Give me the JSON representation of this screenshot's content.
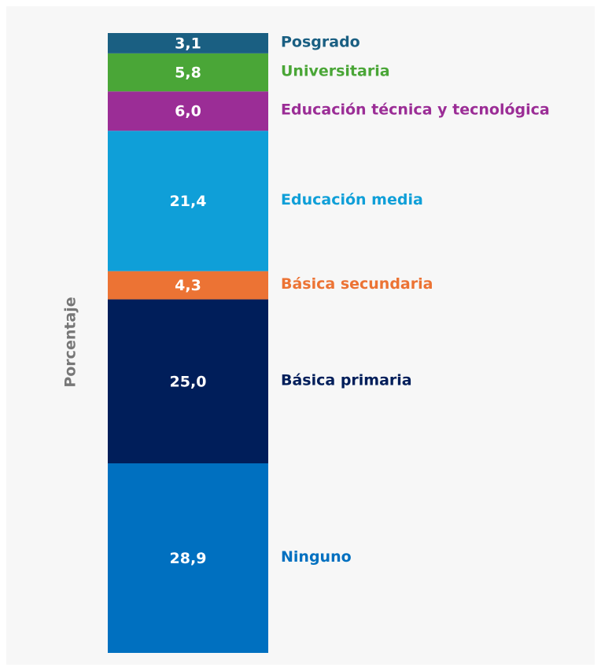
{
  "chart_data": {
    "type": "stacked_bar",
    "ylabel": "Porcentaje",
    "ylim": [
      0,
      94.5
    ],
    "series": [
      {
        "name": "Ninguno",
        "color": "#0070c0",
        "values": [
          28.9
        ],
        "value_labels": [
          "28,9"
        ]
      },
      {
        "name": "Básica primaria",
        "color": "#001e5a",
        "values": [
          25.0
        ],
        "value_labels": [
          "25,0"
        ]
      },
      {
        "name": "Básica secundaria",
        "color": "#ec7334",
        "values": [
          4.3
        ],
        "value_labels": [
          "4,3"
        ]
      },
      {
        "name": "Educación media",
        "color": "#0f9fd8",
        "values": [
          21.4
        ],
        "value_labels": [
          "21,4"
        ]
      },
      {
        "name": "Educación técnica y tecnológica",
        "color": "#9b2d96",
        "values": [
          6.0
        ],
        "value_labels": [
          "6,0"
        ]
      },
      {
        "name": "Universitaria",
        "color": "#4aa637",
        "values": [
          5.8
        ],
        "value_labels": [
          "5,8"
        ]
      },
      {
        "name": "Posgrado",
        "color": "#1a5f82",
        "values": [
          3.1
        ],
        "value_labels": [
          "3,1"
        ]
      }
    ]
  }
}
